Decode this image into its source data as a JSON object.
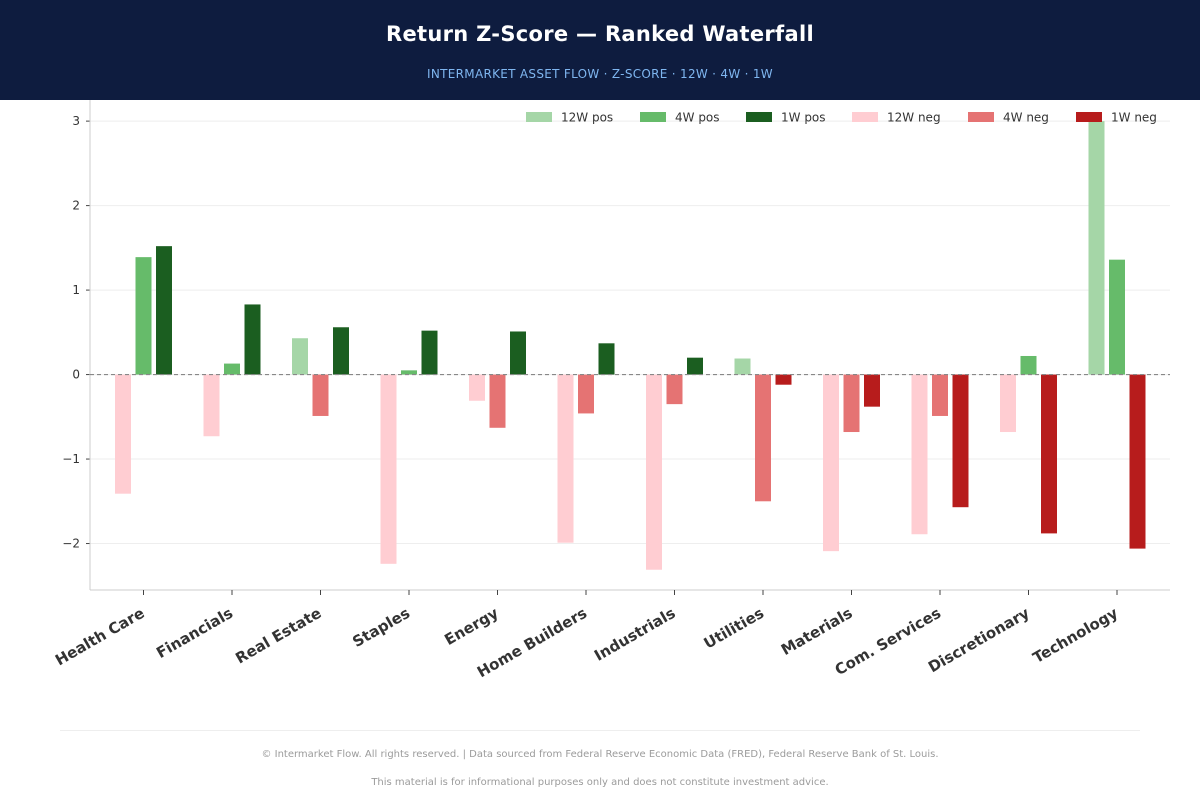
{
  "header": {
    "title": "Return Z-Score — Ranked Waterfall",
    "subtitle": "INTERMARKET ASSET FLOW  ·  Z-SCORE  ·  12W · 4W · 1W"
  },
  "chart_data": {
    "type": "bar",
    "title": "Return Z-Score — Ranked Waterfall",
    "xlabel": "",
    "ylabel": "",
    "ylim": [
      -2.55,
      3.25
    ],
    "yticks": [
      -2,
      -1,
      0,
      1,
      2,
      3
    ],
    "grid": true,
    "legend_position": "top-right",
    "categories": [
      "Health Care",
      "Financials",
      "Real Estate",
      "Staples",
      "Energy",
      "Home Builders",
      "Industrials",
      "Utilities",
      "Materials",
      "Com. Services",
      "Discretionary",
      "Technology"
    ],
    "series": [
      {
        "name": "12W",
        "values": [
          -1.41,
          -0.73,
          0.43,
          -2.24,
          -0.31,
          -1.99,
          -2.31,
          0.19,
          -2.09,
          -1.89,
          -0.68,
          3.0
        ]
      },
      {
        "name": "4W",
        "values": [
          1.39,
          0.13,
          -0.49,
          0.05,
          -0.63,
          -0.46,
          -0.35,
          -1.5,
          -0.68,
          -0.49,
          0.22,
          1.36
        ]
      },
      {
        "name": "1W",
        "values": [
          1.52,
          0.83,
          0.56,
          0.52,
          0.51,
          0.37,
          0.2,
          -0.12,
          -0.38,
          -1.57,
          -1.88,
          -2.06
        ]
      }
    ],
    "legend": [
      {
        "label": "12W pos",
        "color": "#a5d6a7"
      },
      {
        "label": "4W pos",
        "color": "#66bb6a"
      },
      {
        "label": "1W pos",
        "color": "#1b5e20"
      },
      {
        "label": "12W neg",
        "color": "#ffcdd2"
      },
      {
        "label": "4W neg",
        "color": "#e57373"
      },
      {
        "label": "1W neg",
        "color": "#b71c1c"
      }
    ],
    "colors": {
      "pos": [
        "#a5d6a7",
        "#66bb6a",
        "#1b5e20"
      ],
      "neg": [
        "#ffcdd2",
        "#e57373",
        "#b71c1c"
      ]
    }
  },
  "footer": {
    "line1": "© Intermarket Flow. All rights reserved.  |  Data sourced from Federal Reserve Economic Data (FRED), Federal Reserve Bank of St. Louis.",
    "line2": "This material is for informational purposes only and does not constitute investment advice."
  }
}
